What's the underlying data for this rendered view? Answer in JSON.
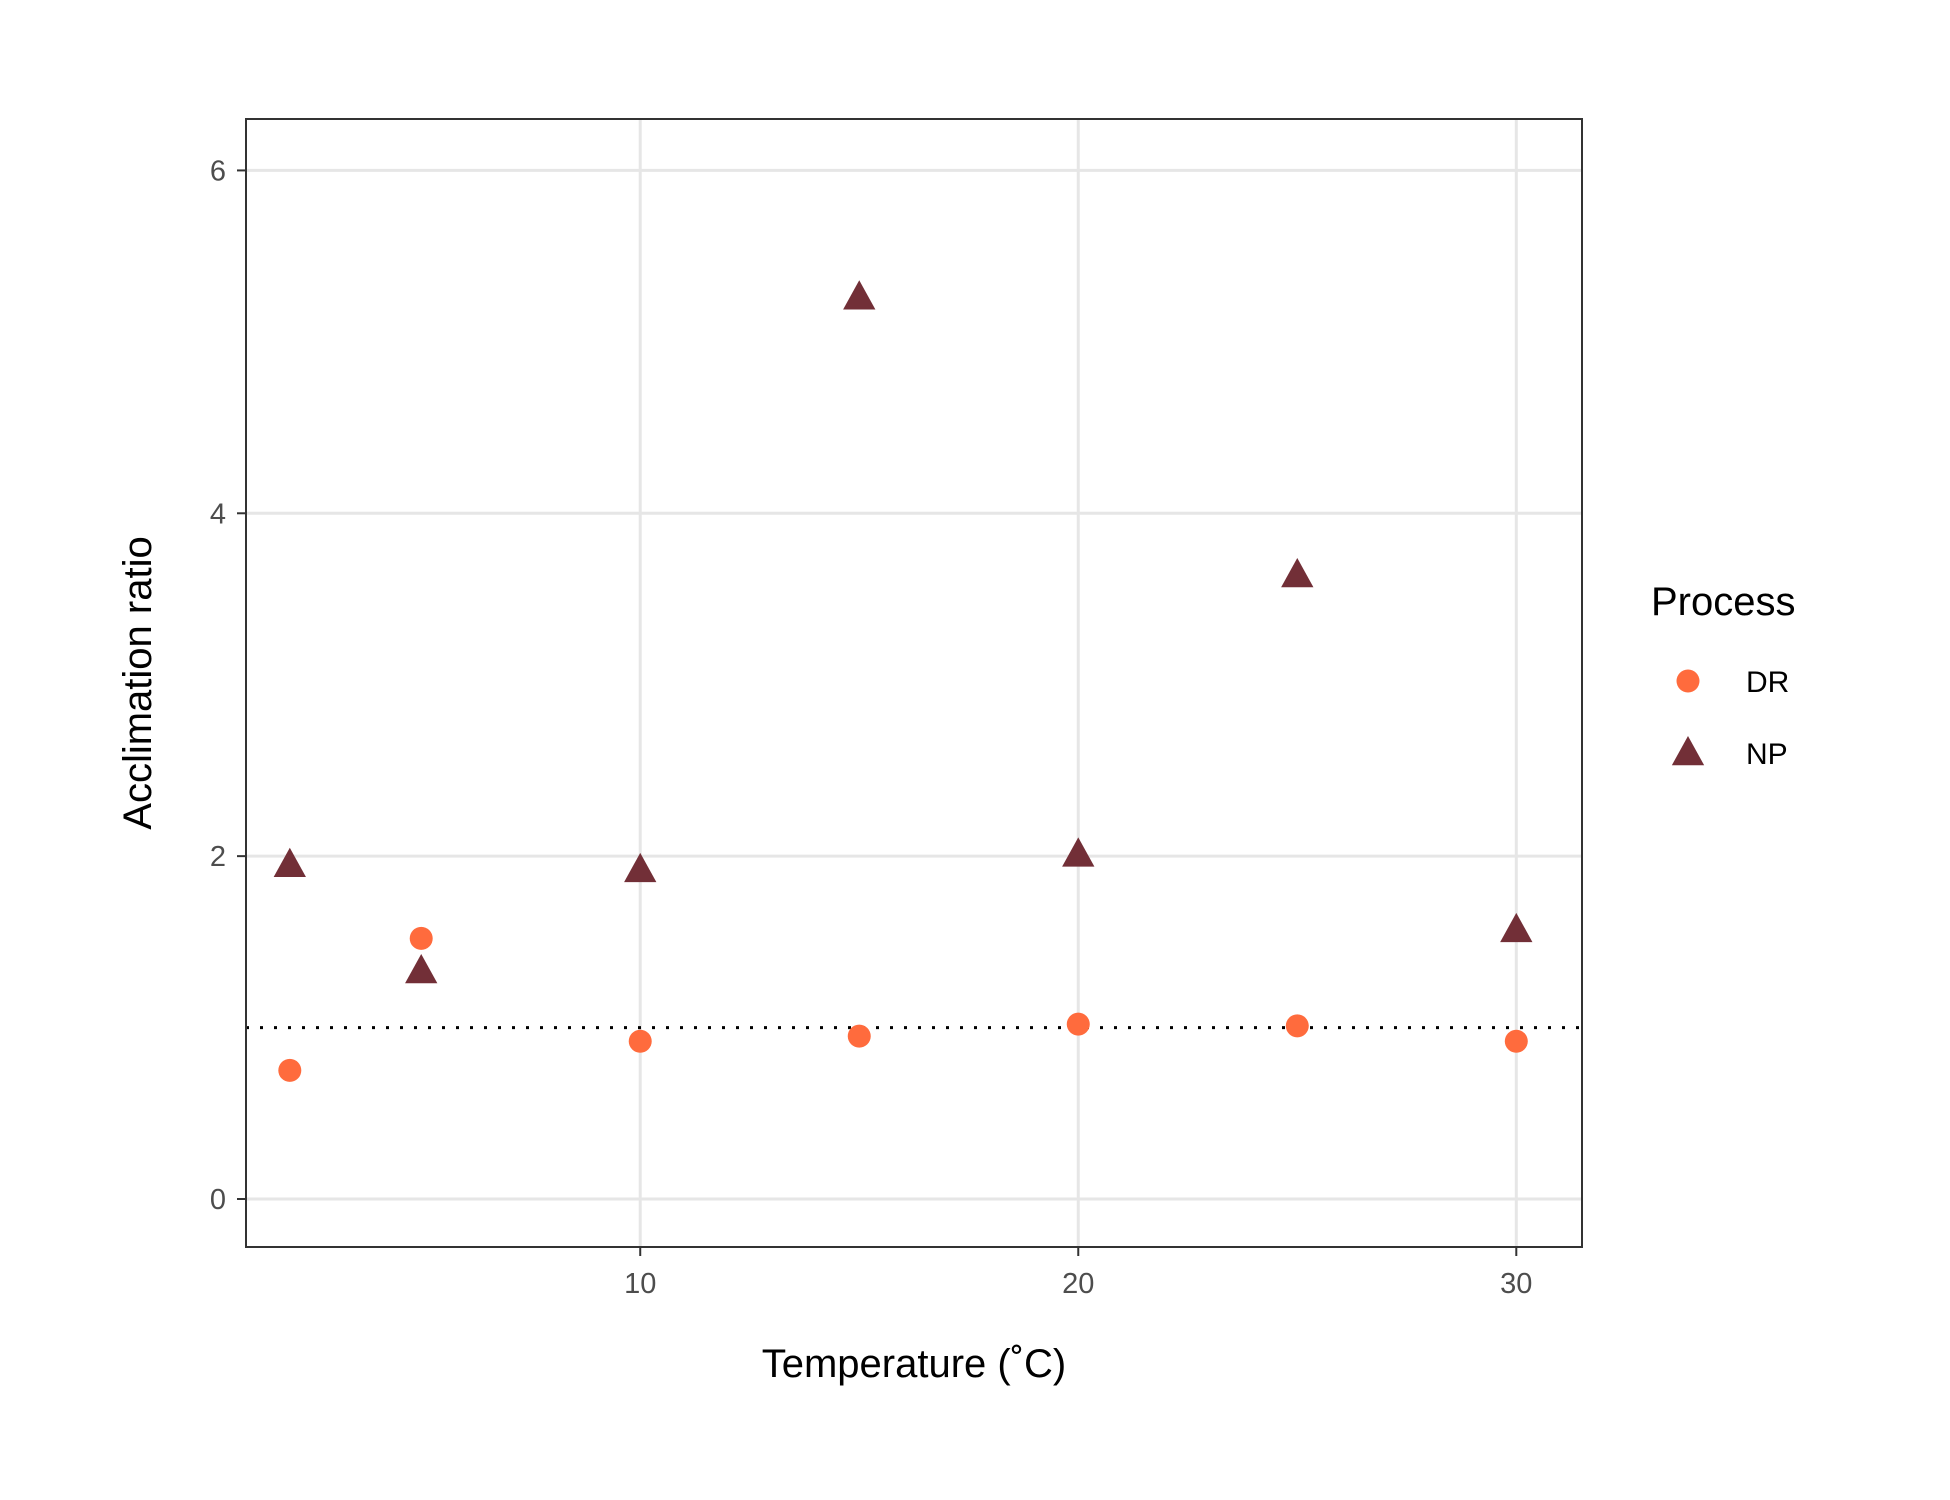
{
  "chart_data": {
    "type": "scatter",
    "xlabel": "Temperature (˚C)",
    "ylabel": "Acclimation ratio",
    "xlim": [
      1,
      31.5
    ],
    "ylim": [
      -0.28,
      6.3
    ],
    "x_ticks": [
      10,
      20,
      30
    ],
    "y_ticks": [
      0,
      2,
      4,
      6
    ],
    "x_tick_labels": [
      "10",
      "20",
      "30"
    ],
    "y_tick_labels": [
      "0",
      "2",
      "4",
      "6"
    ],
    "grid": true,
    "reference_line": {
      "y": 1,
      "style": "dotted"
    },
    "legend": {
      "title": "Process",
      "position": "right"
    },
    "series": [
      {
        "name": "DR",
        "marker": "circle",
        "color": "#FF6B3D",
        "x": [
          2,
          5,
          10,
          15,
          20,
          25,
          30
        ],
        "y": [
          0.75,
          1.52,
          0.92,
          0.95,
          1.02,
          1.01,
          0.92
        ]
      },
      {
        "name": "NP",
        "marker": "triangle",
        "color": "#722F37",
        "x": [
          2,
          5,
          10,
          15,
          20,
          25,
          30
        ],
        "y": [
          1.95,
          1.33,
          1.92,
          5.26,
          2.01,
          3.64,
          1.57
        ]
      }
    ]
  }
}
